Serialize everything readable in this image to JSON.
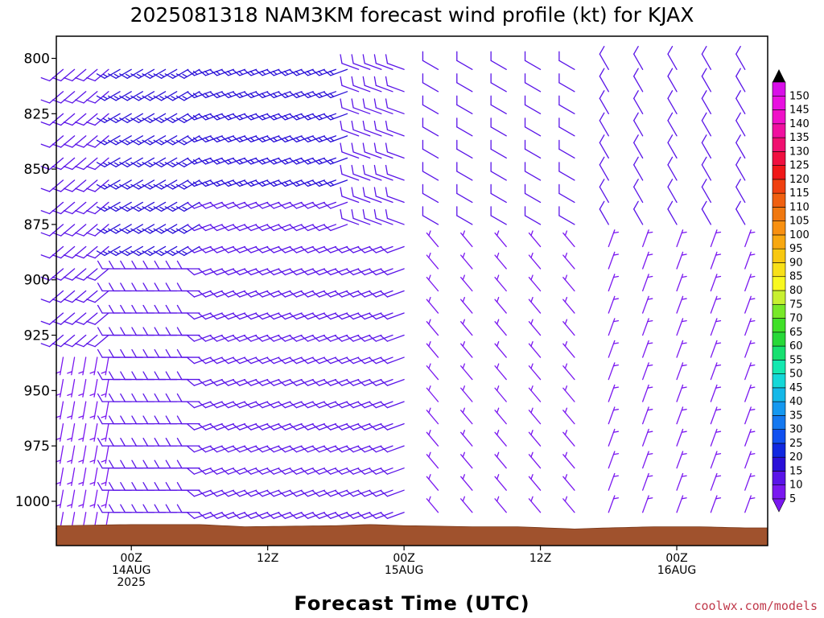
{
  "chart_data": {
    "type": "wind_barb_time_height",
    "title": "2025081318 NAM3KM forecast wind profile (kt) for KJAX",
    "xlabel": "Forecast Time (UTC)",
    "ylabel": "",
    "units": "kt",
    "y_axis": {
      "quantity": "pressure (hPa)",
      "inverted": true,
      "range": [
        790,
        1020
      ],
      "ticks": [
        800,
        825,
        850,
        875,
        900,
        925,
        950,
        975,
        1000
      ],
      "levels": [
        805,
        815,
        825,
        835,
        845,
        855,
        865,
        875,
        885,
        895,
        905,
        915,
        925,
        935,
        945,
        955,
        965,
        975,
        985,
        995,
        1005,
        1012
      ]
    },
    "x_axis": {
      "quantity": "forecast hour from 2025-08-13 18Z",
      "range": [
        -0.6,
        62.0
      ],
      "times": [
        0,
        1,
        2,
        3,
        4,
        5,
        6,
        7,
        8,
        9,
        10,
        11,
        12,
        13,
        14,
        15,
        16,
        17,
        18,
        19,
        20,
        21,
        22,
        23,
        24,
        25,
        26,
        27,
        28,
        29,
        30,
        33,
        36,
        39,
        42,
        45,
        48,
        51,
        54,
        57,
        60
      ],
      "ticks": [
        {
          "hour": 6,
          "label": "00Z",
          "line2": "14AUG",
          "line3": "2025"
        },
        {
          "hour": 18,
          "label": "12Z",
          "line2": "",
          "line3": ""
        },
        {
          "hour": 30,
          "label": "00Z",
          "line2": "15AUG",
          "line3": ""
        },
        {
          "hour": 42,
          "label": "12Z",
          "line2": "",
          "line3": ""
        },
        {
          "hour": 54,
          "label": "00Z",
          "line2": "16AUG",
          "line3": ""
        }
      ]
    },
    "wind_regimes": [
      {
        "hours": [
          0,
          4.5
        ],
        "pressure": [
          790,
          930
        ],
        "dir_deg": 230,
        "speed_kt": 10
      },
      {
        "hours": [
          0,
          4.5
        ],
        "pressure": [
          930,
          1020
        ],
        "dir_deg": 190,
        "speed_kt": 5
      },
      {
        "hours": [
          4.5,
          13
        ],
        "pressure": [
          790,
          890
        ],
        "dir_deg": 240,
        "speed_kt": 15
      },
      {
        "hours": [
          4.5,
          13
        ],
        "pressure": [
          890,
          1020
        ],
        "dir_deg": 270,
        "speed_kt": 10
      },
      {
        "hours": [
          13,
          26
        ],
        "pressure": [
          790,
          860
        ],
        "dir_deg": 250,
        "speed_kt": 15
      },
      {
        "hours": [
          13,
          26
        ],
        "pressure": [
          860,
          1020
        ],
        "dir_deg": 250,
        "speed_kt": 10
      },
      {
        "hours": [
          26,
          33
        ],
        "pressure": [
          790,
          880
        ],
        "dir_deg": 290,
        "speed_kt": 10
      },
      {
        "hours": [
          26,
          33
        ],
        "pressure": [
          880,
          1020
        ],
        "dir_deg": 250,
        "speed_kt": 10
      },
      {
        "hours": [
          33,
          48
        ],
        "pressure": [
          790,
          880
        ],
        "dir_deg": 300,
        "speed_kt": 10
      },
      {
        "hours": [
          33,
          48
        ],
        "pressure": [
          880,
          1020
        ],
        "dir_deg": 320,
        "speed_kt": 5
      },
      {
        "hours": [
          48,
          62
        ],
        "pressure": [
          790,
          880
        ],
        "dir_deg": 330,
        "speed_kt": 10
      },
      {
        "hours": [
          48,
          62
        ],
        "pressure": [
          880,
          1020
        ],
        "dir_deg": 20,
        "speed_kt": 5
      }
    ],
    "surface_pressure": {
      "hours": [
        0,
        6,
        12,
        16,
        24,
        27,
        30,
        36,
        40,
        45,
        48,
        52,
        56,
        60,
        62
      ],
      "pressure_hpa": [
        1011,
        1010.5,
        1010.5,
        1011.5,
        1011,
        1010.5,
        1011,
        1011.5,
        1011.5,
        1012.5,
        1012,
        1011.5,
        1011.5,
        1012,
        1012
      ]
    },
    "colorbar": {
      "labels": [
        5,
        10,
        15,
        20,
        25,
        30,
        35,
        40,
        45,
        50,
        55,
        60,
        65,
        70,
        75,
        80,
        85,
        90,
        95,
        100,
        105,
        110,
        115,
        120,
        125,
        130,
        135,
        140,
        145,
        150
      ],
      "colors": [
        "#7a18f0",
        "#5a14e8",
        "#2a10d8",
        "#1028e0",
        "#1050f0",
        "#1478f0",
        "#1498f0",
        "#14b8e8",
        "#14d8d8",
        "#14e8b0",
        "#18e070",
        "#28d838",
        "#40e028",
        "#78e828",
        "#c8f030",
        "#f8f820",
        "#f8e018",
        "#f8c810",
        "#f8a810",
        "#f89010",
        "#f07810",
        "#f06010",
        "#f04010",
        "#f01818",
        "#f01040",
        "#f01070",
        "#f010a0",
        "#f010c8",
        "#e810e0",
        "#d810e8"
      ]
    },
    "grid": false,
    "legend": "colorbar-right"
  },
  "credit": "coolwx.com/models"
}
